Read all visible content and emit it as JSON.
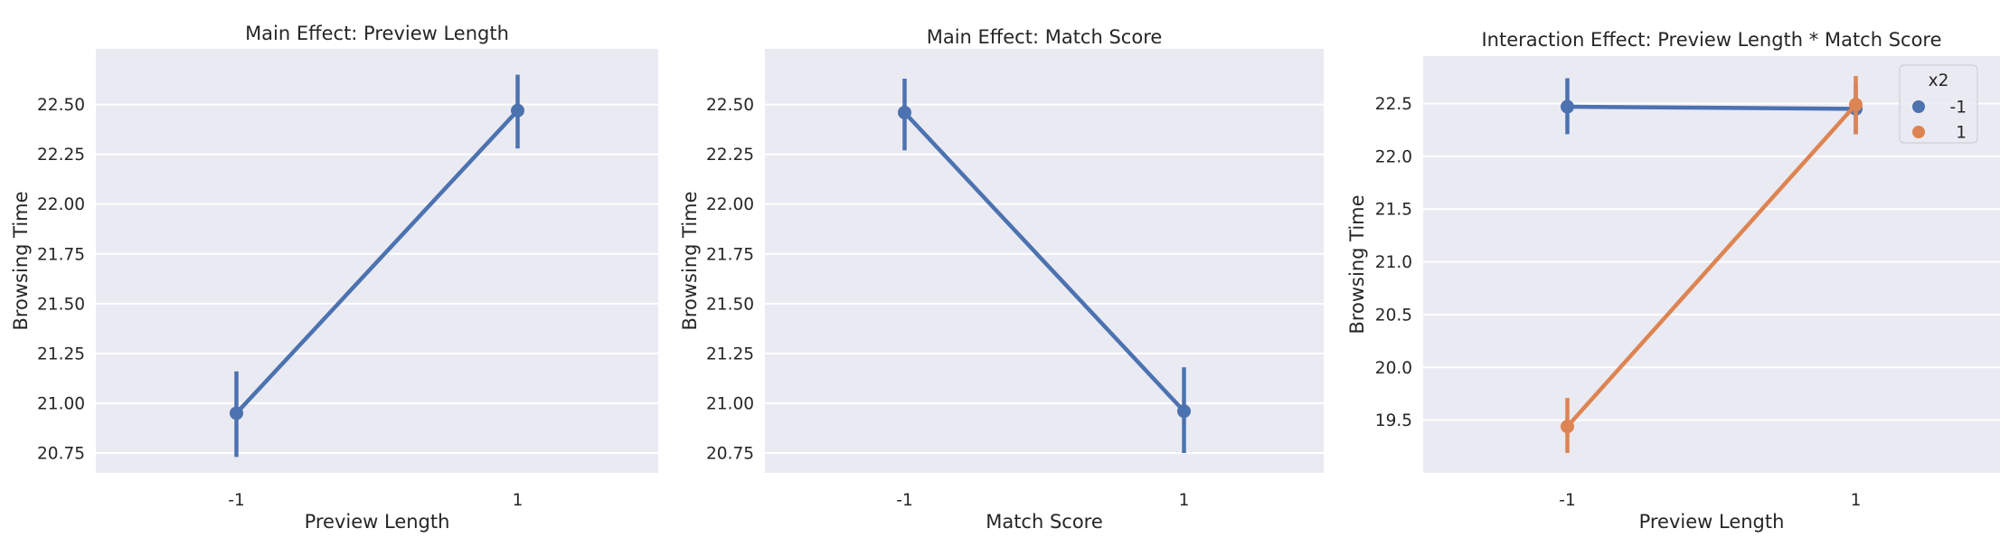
{
  "chart_data": [
    {
      "type": "line",
      "title": "Main Effect: Preview Length",
      "xlabel": "Preview Length",
      "ylabel": "Browsing Time",
      "categories": [
        "-1",
        "1"
      ],
      "ylim": [
        20.65,
        22.78
      ],
      "yticks": [
        20.75,
        21.0,
        21.25,
        21.5,
        21.75,
        22.0,
        22.25,
        22.5
      ],
      "ytick_labels": [
        "20.75",
        "21.00",
        "21.25",
        "21.50",
        "21.75",
        "22.00",
        "22.25",
        "22.50"
      ],
      "grid": true,
      "series": [
        {
          "values": [
            20.95,
            22.47
          ],
          "ci_low": [
            20.73,
            22.28
          ],
          "ci_high": [
            21.16,
            22.65
          ],
          "color": "#4c72b0"
        }
      ]
    },
    {
      "type": "line",
      "title": "Main Effect: Match Score",
      "xlabel": "Match Score",
      "ylabel": "Browsing Time",
      "categories": [
        "-1",
        "1"
      ],
      "ylim": [
        20.65,
        22.78
      ],
      "yticks": [
        20.75,
        21.0,
        21.25,
        21.5,
        21.75,
        22.0,
        22.25,
        22.5
      ],
      "ytick_labels": [
        "20.75",
        "21.00",
        "21.25",
        "21.50",
        "21.75",
        "22.00",
        "22.25",
        "22.50"
      ],
      "grid": true,
      "series": [
        {
          "values": [
            22.46,
            20.96
          ],
          "ci_low": [
            22.27,
            20.75
          ],
          "ci_high": [
            22.63,
            21.18
          ],
          "color": "#4c72b0"
        }
      ]
    },
    {
      "type": "line",
      "title": "Interaction Effect: Preview Length * Match Score",
      "xlabel": "Preview Length",
      "ylabel": "Browsing Time",
      "categories": [
        "-1",
        "1"
      ],
      "ylim": [
        19.0,
        22.95
      ],
      "yticks": [
        19.5,
        20.0,
        20.5,
        21.0,
        21.5,
        22.0,
        22.5
      ],
      "ytick_labels": [
        "19.5",
        "20.0",
        "20.5",
        "21.0",
        "21.5",
        "22.0",
        "22.5"
      ],
      "grid": true,
      "legend": {
        "title": "x2",
        "position": "top-right"
      },
      "series": [
        {
          "name": "-1",
          "values": [
            22.47,
            22.45
          ],
          "ci_low": [
            22.21,
            22.21
          ],
          "ci_high": [
            22.74,
            22.68
          ],
          "color": "#4c72b0"
        },
        {
          "name": "1",
          "values": [
            19.44,
            22.49
          ],
          "ci_low": [
            19.19,
            22.21
          ],
          "ci_high": [
            19.71,
            22.76
          ],
          "color": "#dd8452"
        }
      ]
    }
  ]
}
